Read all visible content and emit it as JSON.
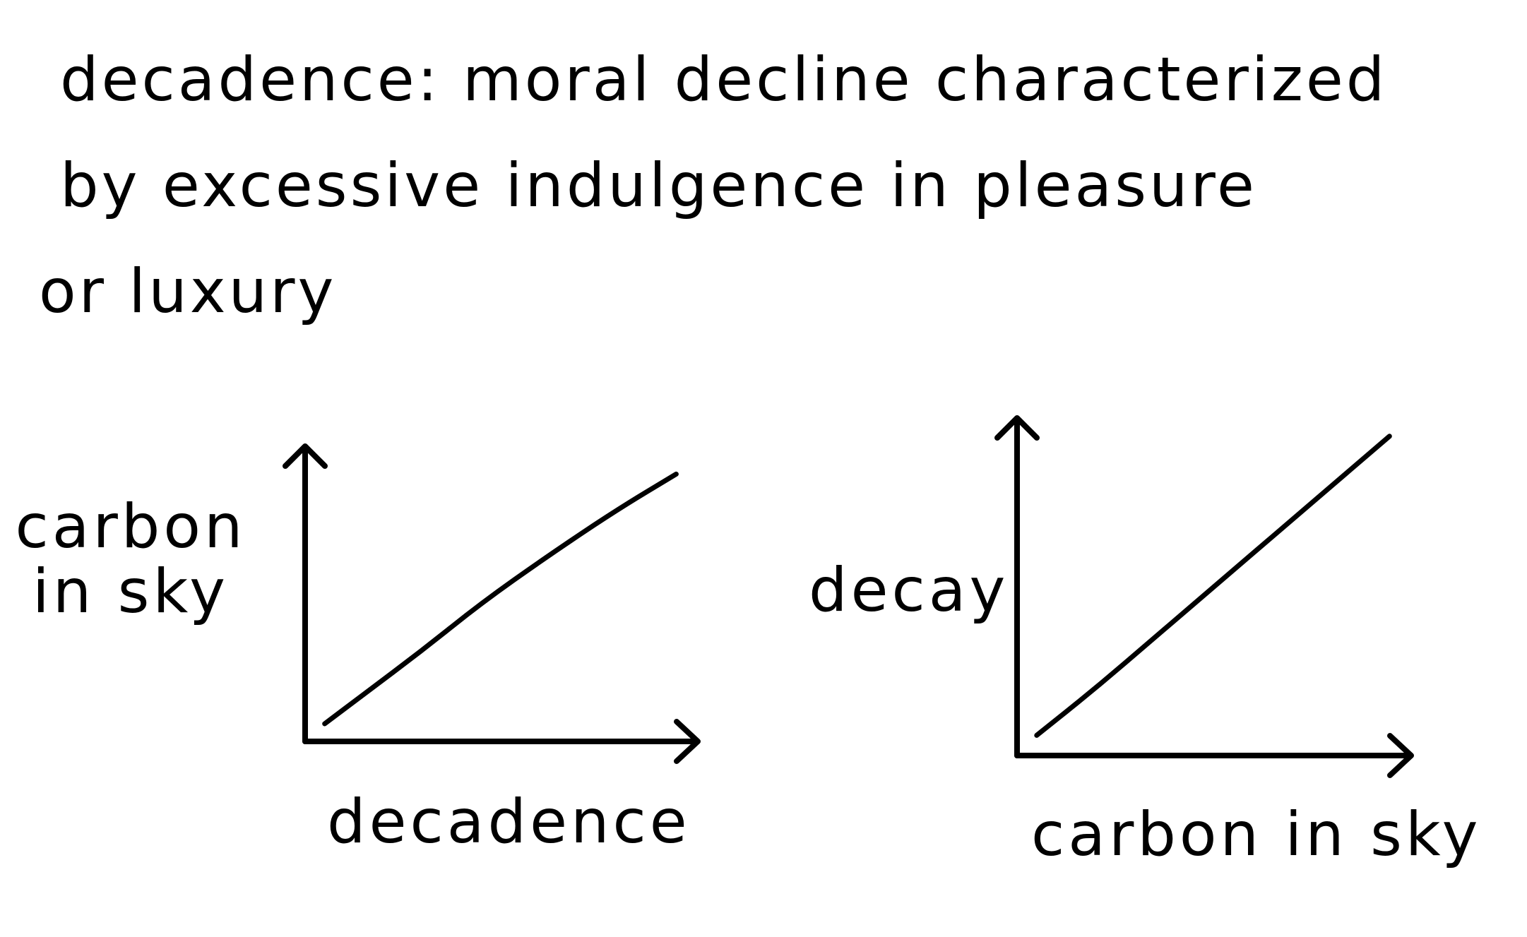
{
  "definition": {
    "line1": "decadence: moral decline characterized",
    "line2": "by excessive indulgence in pleasure",
    "line3": "or luxury"
  },
  "chart_data": [
    {
      "type": "line",
      "title": "",
      "xlabel": "decadence",
      "ylabel": "carbon in sky",
      "x": [
        0.05,
        0.15,
        0.3,
        0.45,
        0.62,
        0.8,
        0.95
      ],
      "series": [
        {
          "values": [
            0.06,
            0.16,
            0.31,
            0.47,
            0.63,
            0.79,
            0.91
          ]
        }
      ],
      "xlim": [
        0,
        1
      ],
      "ylim": [
        0,
        1
      ],
      "grid": false,
      "ticks": false
    },
    {
      "type": "line",
      "title": "",
      "xlabel": "carbon in sky",
      "ylabel": "decay",
      "x": [
        0.05,
        0.2,
        0.35,
        0.55,
        0.75,
        0.95
      ],
      "series": [
        {
          "values": [
            0.06,
            0.2,
            0.35,
            0.55,
            0.75,
            0.95
          ]
        }
      ],
      "xlim": [
        0,
        1
      ],
      "ylim": [
        0,
        1
      ],
      "grid": false,
      "ticks": false
    }
  ]
}
